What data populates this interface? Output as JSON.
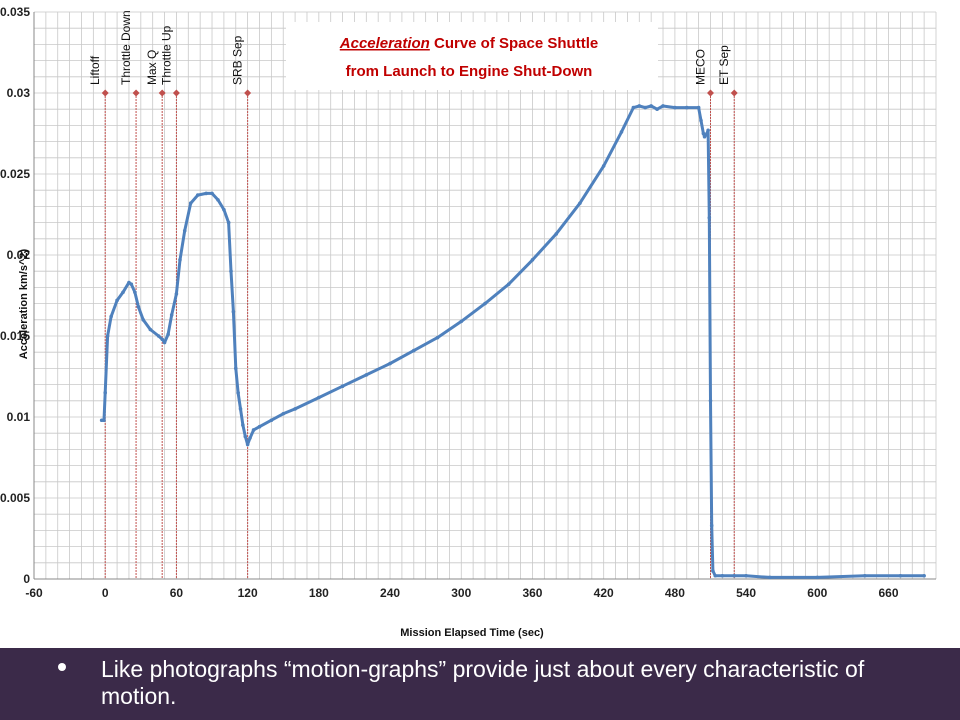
{
  "chart_data": {
    "type": "scatter",
    "title_line1_emph": "Acceleration",
    "title_line1_rest": " Curve of Space Shuttle",
    "title_line2": "from Launch to Engine Shut-Down",
    "xlabel": "Mission Elapsed Time (sec)",
    "ylabel": "Acceleration km/s^2)",
    "xlim": [
      -60,
      700
    ],
    "ylim": [
      0,
      0.035
    ],
    "x_ticks": [
      -60,
      0,
      60,
      120,
      180,
      240,
      300,
      360,
      420,
      480,
      540,
      600,
      660
    ],
    "x_tick_labels": [
      "-60",
      "0",
      "60",
      "120",
      "180",
      "240",
      "300",
      "360",
      "420",
      "480",
      "540",
      "600",
      "660"
    ],
    "y_ticks": [
      0,
      0.005,
      0.01,
      0.015,
      0.02,
      0.025,
      0.03,
      0.035
    ],
    "y_tick_labels": [
      "0",
      "0.005",
      "0.01",
      "0.015",
      "0.02",
      "0.025",
      "0.03",
      "0.035"
    ],
    "grid": true,
    "series": [
      {
        "color": "#4f81bd",
        "x": [
          -3,
          -1,
          0,
          2,
          5,
          10,
          15,
          20,
          22,
          25,
          28,
          32,
          38,
          45,
          48,
          50,
          53,
          56,
          60,
          63,
          67,
          72,
          78,
          85,
          90,
          95,
          100,
          104,
          106,
          108,
          110,
          112,
          114,
          116,
          118,
          120,
          122,
          125,
          130,
          140,
          150,
          160,
          180,
          200,
          220,
          240,
          260,
          280,
          300,
          320,
          340,
          360,
          380,
          400,
          420,
          435,
          445,
          450,
          455,
          460,
          465,
          470,
          480,
          490,
          500,
          502,
          504,
          505,
          507,
          508,
          509,
          510,
          511,
          512,
          514,
          520,
          530,
          540,
          560,
          600,
          640,
          670,
          690
        ],
        "y": [
          0.0098,
          0.0098,
          0.0115,
          0.015,
          0.0162,
          0.0172,
          0.0177,
          0.0183,
          0.0182,
          0.0177,
          0.0168,
          0.016,
          0.0154,
          0.015,
          0.0148,
          0.0146,
          0.0151,
          0.0163,
          0.0176,
          0.0197,
          0.0215,
          0.0232,
          0.0237,
          0.0238,
          0.0238,
          0.0234,
          0.0228,
          0.022,
          0.019,
          0.0165,
          0.013,
          0.0115,
          0.0105,
          0.0095,
          0.0088,
          0.0083,
          0.0087,
          0.0092,
          0.0094,
          0.0098,
          0.0102,
          0.0105,
          0.0112,
          0.0119,
          0.0126,
          0.0133,
          0.0141,
          0.0149,
          0.0159,
          0.017,
          0.0182,
          0.0197,
          0.0213,
          0.0232,
          0.0255,
          0.0276,
          0.0291,
          0.0292,
          0.0291,
          0.0292,
          0.029,
          0.0292,
          0.0291,
          0.0291,
          0.0291,
          0.0283,
          0.0275,
          0.0273,
          0.0275,
          0.0277,
          0.0223,
          0.011,
          0.0033,
          0.0005,
          0.0002,
          0.0002,
          0.0002,
          0.0002,
          0.0001,
          0.0001,
          0.0002,
          0.0002,
          0.0002
        ]
      }
    ],
    "events": [
      {
        "label": "Liftoff",
        "x": 0
      },
      {
        "label": "Throttle Down",
        "x": 26
      },
      {
        "label": "Max Q",
        "x": 48
      },
      {
        "label": "Throttle Up",
        "x": 60
      },
      {
        "label": "SRB Sep",
        "x": 120
      },
      {
        "label": "MECO",
        "x": 510
      },
      {
        "label": "ET Sep",
        "x": 530
      }
    ],
    "event_marker_y": 0.03,
    "colors": {
      "line": "#4f81bd",
      "grid": "#c8c8c8",
      "event_line": "#c0504d",
      "title": "#c00000"
    }
  },
  "slide": {
    "bullet": "Like photographs “motion-graphs” provide just about every characteristic of motion.",
    "band_color": "#3b2a49"
  }
}
